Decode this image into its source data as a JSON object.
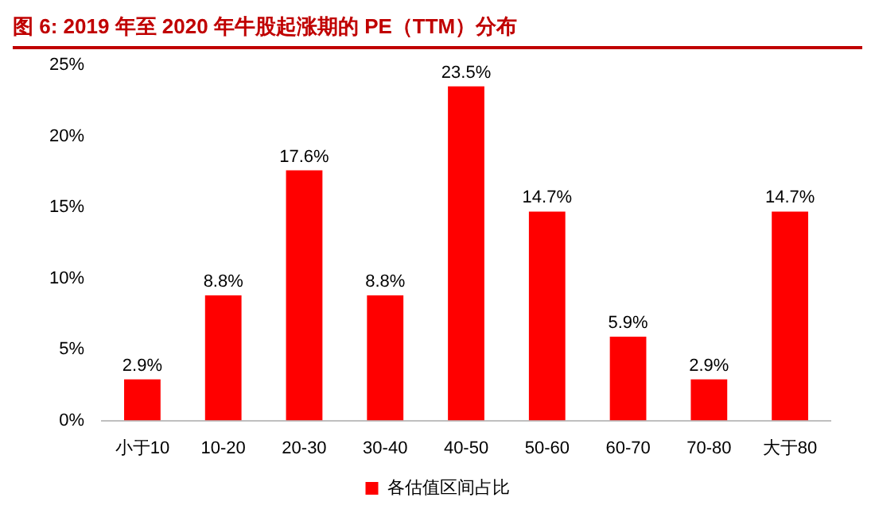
{
  "chart_data": {
    "type": "bar",
    "title": "图 6: 2019 年至 2020 年牛股起涨期的 PE（TTM）分布",
    "categories": [
      "小于10",
      "10-20",
      "20-30",
      "30-40",
      "40-50",
      "50-60",
      "60-70",
      "70-80",
      "大于80"
    ],
    "series": [
      {
        "name": "各估值区间占比",
        "color": "#ff0000",
        "values": [
          2.9,
          8.8,
          17.6,
          8.8,
          23.5,
          14.7,
          5.9,
          2.9,
          14.7
        ],
        "value_labels": [
          "2.9%",
          "8.8%",
          "17.6%",
          "8.8%",
          "23.5%",
          "14.7%",
          "5.9%",
          "2.9%",
          "14.7%"
        ]
      }
    ],
    "ylim": [
      0,
      25
    ],
    "yticks": [
      {
        "value": 0,
        "label": "0%"
      },
      {
        "value": 5,
        "label": "5%"
      },
      {
        "value": 10,
        "label": "10%"
      },
      {
        "value": 15,
        "label": "15%"
      },
      {
        "value": 20,
        "label": "20%"
      },
      {
        "value": 25,
        "label": "25%"
      }
    ],
    "grid": false,
    "legend": "bottom"
  }
}
